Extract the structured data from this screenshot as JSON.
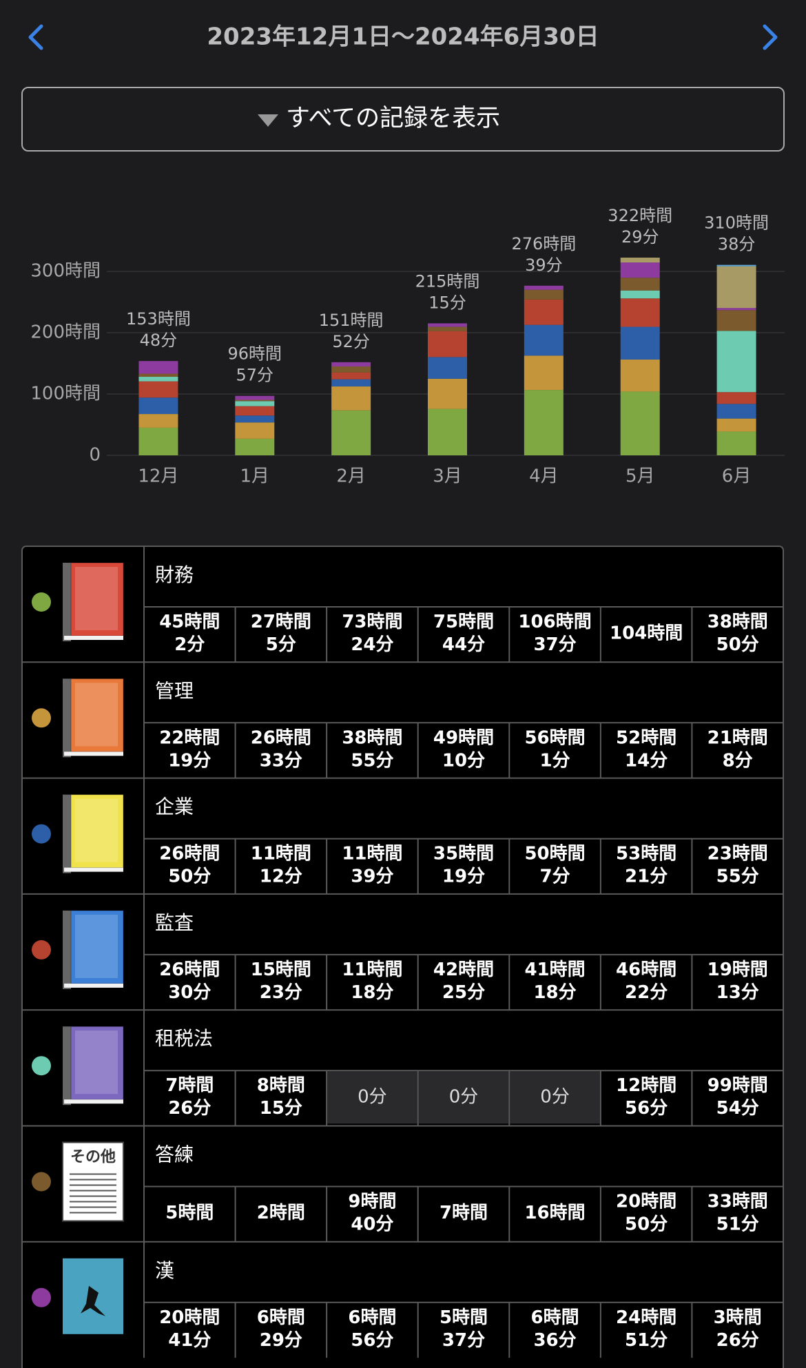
{
  "header": {
    "title": "2023年12月1日〜2024年6月30日",
    "button": "すべての記録を表示"
  },
  "chart_data": {
    "type": "stacked-bar",
    "categories": [
      "12月",
      "1月",
      "2月",
      "3月",
      "4月",
      "5月",
      "6月"
    ],
    "ylim": [
      0,
      400
    ],
    "yticks": [
      0,
      {
        "value": 100,
        "label": "100時間"
      },
      {
        "value": 200,
        "label": "200時間"
      },
      {
        "value": 300,
        "label": "300時間"
      }
    ],
    "grid": true,
    "totals": [
      [
        "153時間",
        "48分"
      ],
      [
        "96時間",
        "57分"
      ],
      [
        "151時間",
        "52分"
      ],
      [
        "215時間",
        "15分"
      ],
      [
        "276時間",
        "39分"
      ],
      [
        "322時間",
        "29分"
      ],
      [
        "310時間",
        "38分"
      ]
    ],
    "series": [
      {
        "name": "財務",
        "color": "#7fa843",
        "icon": "book",
        "icon_color": "#d9493a",
        "values": [
          45.03,
          27.08,
          73.4,
          75.73,
          106.62,
          104,
          38.83
        ],
        "cells": [
          [
            "45時間",
            "2分"
          ],
          [
            "27時間",
            "5分"
          ],
          [
            "73時間",
            "24分"
          ],
          [
            "75時間",
            "44分"
          ],
          [
            "106時間",
            "37分"
          ],
          [
            "104時間"
          ],
          [
            "38時間",
            "50分"
          ]
        ]
      },
      {
        "name": "管理",
        "color": "#c4953a",
        "icon": "book",
        "icon_color": "#e8793a",
        "values": [
          22.32,
          26.55,
          38.92,
          49.17,
          56.02,
          52.23,
          21.13
        ],
        "cells": [
          [
            "22時間",
            "19分"
          ],
          [
            "26時間",
            "33分"
          ],
          [
            "38時間",
            "55分"
          ],
          [
            "49時間",
            "10分"
          ],
          [
            "56時間",
            "1分"
          ],
          [
            "52時間",
            "14分"
          ],
          [
            "21時間",
            "8分"
          ]
        ]
      },
      {
        "name": "企業",
        "color": "#2c5fa8",
        "icon": "book",
        "icon_color": "#f0e24a",
        "values": [
          26.83,
          11.2,
          11.65,
          35.32,
          50.12,
          53.35,
          23.92
        ],
        "cells": [
          [
            "26時間",
            "50分"
          ],
          [
            "11時間",
            "12分"
          ],
          [
            "11時間",
            "39分"
          ],
          [
            "35時間",
            "19分"
          ],
          [
            "50時間",
            "7分"
          ],
          [
            "53時間",
            "21分"
          ],
          [
            "23時間",
            "55分"
          ]
        ]
      },
      {
        "name": "監査",
        "color": "#b5432f",
        "icon": "book",
        "icon_color": "#3b7fd6",
        "values": [
          26.5,
          15.38,
          11.3,
          42.42,
          41.3,
          46.37,
          19.22
        ],
        "cells": [
          [
            "26時間",
            "30分"
          ],
          [
            "15時間",
            "23分"
          ],
          [
            "11時間",
            "18分"
          ],
          [
            "42時間",
            "25分"
          ],
          [
            "41時間",
            "18分"
          ],
          [
            "46時間",
            "22分"
          ],
          [
            "19時間",
            "13分"
          ]
        ]
      },
      {
        "name": "租税法",
        "color": "#6ccbb0",
        "icon": "book",
        "icon_color": "#7d68c0",
        "values": [
          7.43,
          8.25,
          0,
          0,
          0,
          12.93,
          99.9
        ],
        "cells": [
          [
            "7時間",
            "26分"
          ],
          [
            "8時間",
            "15分"
          ],
          [
            "0分"
          ],
          [
            "0分"
          ],
          [
            "0分"
          ],
          [
            "12時間",
            "56分"
          ],
          [
            "99時間",
            "54分"
          ]
        ]
      },
      {
        "name": "答練",
        "color": "#7b5a2e",
        "icon": "document",
        "icon_text": "その他",
        "values": [
          5,
          2,
          9.67,
          7,
          16,
          20.83,
          33.85
        ],
        "cells": [
          [
            "5時間"
          ],
          [
            "2時間"
          ],
          [
            "9時間",
            "40分"
          ],
          [
            "7時間"
          ],
          [
            "16時間"
          ],
          [
            "20時間",
            "50分"
          ],
          [
            "33時間",
            "51分"
          ]
        ]
      },
      {
        "name": "漢",
        "color": "#8e3ba0",
        "icon": "image",
        "icon_color": "#4aa3c0",
        "values": [
          20.68,
          6.48,
          6.93,
          5.62,
          6.6,
          24.85,
          3.43
        ],
        "cells": [
          [
            "20時間",
            "41分"
          ],
          [
            "6時間",
            "29分"
          ],
          [
            "6時間",
            "56分"
          ],
          [
            "5時間",
            "37分"
          ],
          [
            "6時間",
            "36分"
          ],
          [
            "24時間",
            "51分"
          ],
          [
            "3時間",
            "26分"
          ]
        ]
      },
      {
        "color": "#a89a64",
        "values": [
          0,
          0,
          0,
          0,
          0,
          7.9,
          68
        ]
      },
      {
        "color": "#5fa6d8",
        "values": [
          0,
          0,
          0,
          0,
          0,
          0,
          2.3
        ]
      }
    ]
  }
}
